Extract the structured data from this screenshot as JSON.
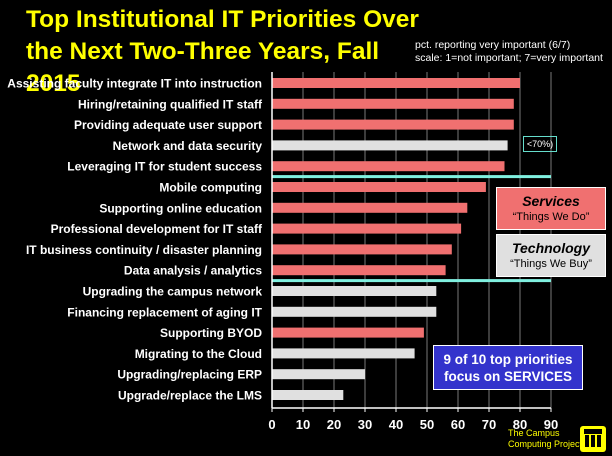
{
  "header": {
    "title": "Top Institutional IT Priorities Over the Next Two-Three Years, Fall 2015",
    "subtitle_line1": "pct. reporting very important (6/7)",
    "subtitle_line2": "scale: 1=not important;  7=very important"
  },
  "legend": {
    "services_title": "Services",
    "services_sub": "“Things We Do”",
    "technology_title": "Technology",
    "technology_sub": "“Things We Buy”"
  },
  "callout": {
    "line1": "9 of 10 top priorities",
    "line2": "focus on SERVICES"
  },
  "threshold_note": "<70%)",
  "footer": {
    "line1": "The Campus",
    "line2": "Computing Project"
  },
  "colors": {
    "services": "#f07070",
    "technology": "#e0e0e0",
    "divider": "#80f0e0",
    "title": "#ffff00",
    "callout_bg": "#3333cc"
  },
  "chart_data": {
    "type": "bar",
    "orientation": "horizontal",
    "xlim": [
      0,
      90
    ],
    "xticks": [
      0,
      10,
      20,
      30,
      40,
      50,
      60,
      70,
      80,
      90
    ],
    "grid": true,
    "categories": [
      "Assisting faculty integrate IT into instruction",
      "Hiring/retaining qualified IT staff",
      "Providing adequate user support",
      "Network and data security",
      "Leveraging IT for student success",
      "Mobile computing",
      "Supporting online education",
      "Professional development for IT staff",
      "IT business continuity / disaster planning",
      "Data analysis / analytics",
      "Upgrading the campus network",
      "Financing replacement of aging IT",
      "Supporting BYOD",
      "Migrating to the Cloud",
      "Upgrading/replacing ERP",
      "Upgrade/replace the LMS"
    ],
    "values": [
      80,
      78,
      78,
      76,
      75,
      69,
      63,
      61,
      58,
      56,
      53,
      53,
      49,
      46,
      30,
      23
    ],
    "kind": [
      "services",
      "services",
      "services",
      "technology",
      "services",
      "services",
      "services",
      "services",
      "services",
      "services",
      "technology",
      "technology",
      "services",
      "technology",
      "technology",
      "technology"
    ],
    "divider_after_index": [
      4,
      9
    ]
  }
}
